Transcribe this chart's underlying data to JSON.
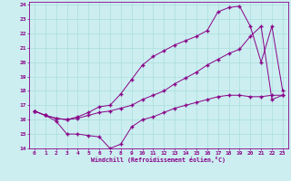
{
  "xlabel": "Windchill (Refroidissement éolien,°C)",
  "background_color": "#cceef0",
  "line_color": "#880088",
  "grid_color": "#aadddd",
  "xlim": [
    -0.5,
    23.5
  ],
  "ylim": [
    14,
    24.2
  ],
  "xticks": [
    0,
    1,
    2,
    3,
    4,
    5,
    6,
    7,
    8,
    9,
    10,
    11,
    12,
    13,
    14,
    15,
    16,
    17,
    18,
    19,
    20,
    21,
    22,
    23
  ],
  "yticks": [
    14,
    15,
    16,
    17,
    18,
    19,
    20,
    21,
    22,
    23,
    24
  ],
  "line1_x": [
    0,
    1,
    2,
    3,
    4,
    5,
    6,
    7,
    8,
    9,
    10,
    11,
    12,
    13,
    14,
    15,
    16,
    17,
    18,
    19,
    20,
    21,
    22,
    23
  ],
  "line1_y": [
    16.6,
    16.3,
    15.9,
    15.0,
    15.0,
    14.9,
    14.8,
    14.0,
    14.3,
    15.5,
    16.0,
    16.2,
    16.5,
    16.8,
    17.0,
    17.2,
    17.4,
    17.6,
    17.7,
    17.7,
    17.6,
    17.6,
    17.7,
    17.7
  ],
  "line2_x": [
    0,
    1,
    2,
    3,
    4,
    5,
    6,
    7,
    8,
    9,
    10,
    11,
    12,
    13,
    14,
    15,
    16,
    17,
    18,
    19,
    20,
    21,
    22,
    23
  ],
  "line2_y": [
    16.6,
    16.3,
    16.1,
    16.0,
    16.1,
    16.3,
    16.5,
    16.6,
    16.8,
    17.0,
    17.4,
    17.7,
    18.0,
    18.5,
    18.9,
    19.3,
    19.8,
    20.2,
    20.6,
    20.9,
    21.8,
    22.5,
    17.4,
    17.7
  ],
  "line3_x": [
    0,
    1,
    2,
    3,
    4,
    5,
    6,
    7,
    8,
    9,
    10,
    11,
    12,
    13,
    14,
    15,
    16,
    17,
    18,
    19,
    20,
    21,
    22,
    23
  ],
  "line3_y": [
    16.6,
    16.3,
    16.1,
    16.0,
    16.2,
    16.5,
    16.9,
    17.0,
    17.8,
    18.8,
    19.8,
    20.4,
    20.8,
    21.2,
    21.5,
    21.8,
    22.2,
    23.5,
    23.8,
    23.9,
    22.5,
    20.0,
    22.5,
    18.0
  ]
}
